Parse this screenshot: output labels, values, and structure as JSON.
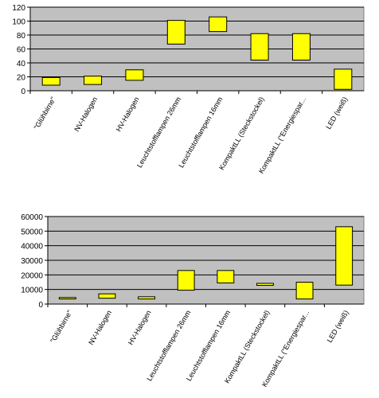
{
  "colors": {
    "plot_bg": "#c0c0c0",
    "bar_fill": "#ffff00",
    "bar_stroke": "#000000",
    "grid": "#000000"
  },
  "chart_data": [
    {
      "type": "bar",
      "subtype": "floating-range",
      "categories": [
        "\"Glühbirne\"",
        "NV-Halogen",
        "HV-Halogen",
        "Leuchtstofflampen 26mm",
        "Leuchtstofflampen 16mm",
        "KompaktLL (Steckstockel)",
        "KompaktLL (\"Energiespar...",
        "LED (weiß)"
      ],
      "low": [
        8,
        9,
        15,
        67,
        85,
        44,
        44,
        2
      ],
      "high": [
        19,
        21,
        30,
        101,
        106,
        82,
        82,
        31
      ],
      "ylim": [
        0,
        120
      ],
      "yticks": [
        0,
        20,
        40,
        60,
        80,
        100,
        120
      ],
      "grid": true,
      "title": "",
      "xlabel": "",
      "ylabel": ""
    },
    {
      "type": "bar",
      "subtype": "floating-range",
      "categories": [
        "\"Glühbirne\"",
        "NV-Halogen",
        "HV-Halogen",
        "Leuchtstofflampen 26mm",
        "Leuchtstofflampen 16mm",
        "KompaktLL (Steckstockel)",
        "KompaktLL (\"Energiespar...",
        "LED (weiß)"
      ],
      "low": [
        3500,
        4000,
        3500,
        9500,
        14500,
        12800,
        3500,
        13000
      ],
      "high": [
        4500,
        7000,
        5000,
        23000,
        23000,
        14200,
        15000,
        53000
      ],
      "ylim": [
        0,
        60000
      ],
      "yticks": [
        0,
        10000,
        20000,
        30000,
        40000,
        50000,
        60000
      ],
      "grid": true,
      "title": "",
      "xlabel": "",
      "ylabel": ""
    }
  ]
}
